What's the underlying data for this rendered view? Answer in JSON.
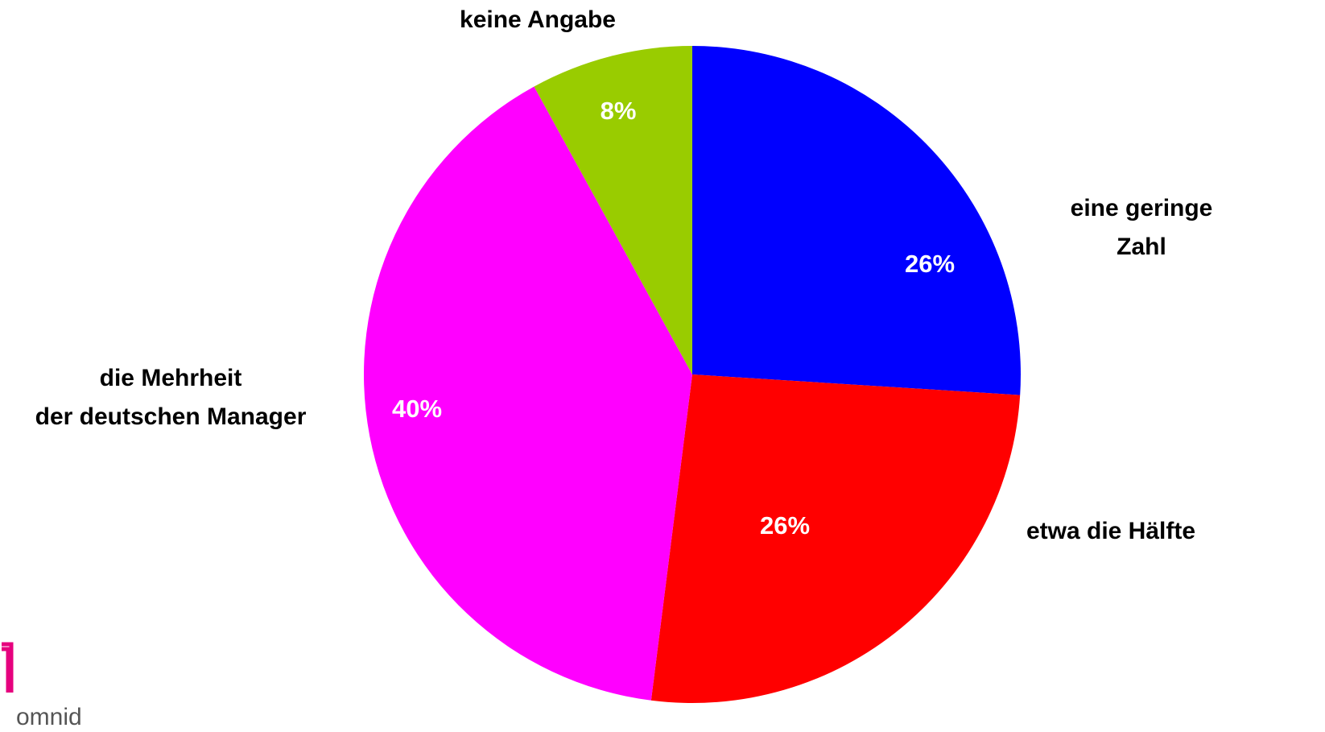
{
  "chart_data": {
    "type": "pie",
    "categories": [
      "eine geringe Zahl",
      "etwa die Hälfte",
      "die Mehrheit\nder deutschen Manager",
      "keine Angabe"
    ],
    "values": [
      26,
      26,
      40,
      8
    ],
    "value_labels": [
      "26%",
      "26%",
      "40%",
      "8%"
    ],
    "colors": [
      "#0000ff",
      "#ff0000",
      "#ff00ff",
      "#99cc00"
    ],
    "logo": "omnid"
  }
}
